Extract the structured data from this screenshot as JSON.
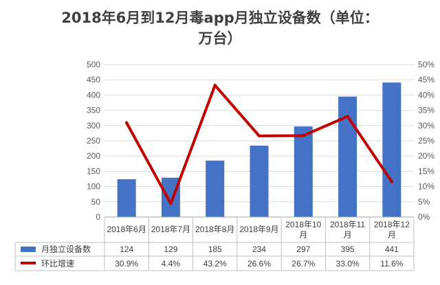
{
  "chart_data": {
    "type": "bar",
    "title_line1": "2018年6月到12月毒app月独立设备数（单位：",
    "title_line2": "万台）",
    "categories": [
      "2018年6月",
      "2018年7月",
      "2018年8月",
      "2018年9月",
      "2018年10月",
      "2018年11月",
      "2018年12月"
    ],
    "category_lines": [
      [
        "2018年6月"
      ],
      [
        "2018年7月"
      ],
      [
        "2018年8月"
      ],
      [
        "2018年9月"
      ],
      [
        "2018年10",
        "月"
      ],
      [
        "2018年11",
        "月"
      ],
      [
        "2018年12",
        "月"
      ]
    ],
    "ylim": [
      0,
      500
    ],
    "y_ticks": [
      "0",
      "50",
      "100",
      "150",
      "200",
      "250",
      "300",
      "350",
      "400",
      "450",
      "500"
    ],
    "y2lim": [
      0,
      50
    ],
    "y2_ticks": [
      "0%",
      "5%",
      "10%",
      "15%",
      "20%",
      "25%",
      "30%",
      "35%",
      "40%",
      "45%",
      "50%"
    ],
    "series": [
      {
        "name": "月独立设备数",
        "type": "bar",
        "axis": "left",
        "color": "#4472c4",
        "values": [
          124,
          129,
          185,
          234,
          297,
          395,
          441
        ],
        "labels": [
          "124",
          "129",
          "185",
          "234",
          "297",
          "395",
          "441"
        ]
      },
      {
        "name": "环比增速",
        "type": "line",
        "axis": "right",
        "color": "#c00000",
        "values": [
          30.9,
          4.4,
          43.2,
          26.6,
          26.7,
          33.0,
          11.6
        ],
        "labels": [
          "30.9%",
          "4.4%",
          "43.2%",
          "26.6%",
          "26.7%",
          "33.0%",
          "11.6%"
        ]
      }
    ],
    "grid": true,
    "legend": "data-table"
  }
}
